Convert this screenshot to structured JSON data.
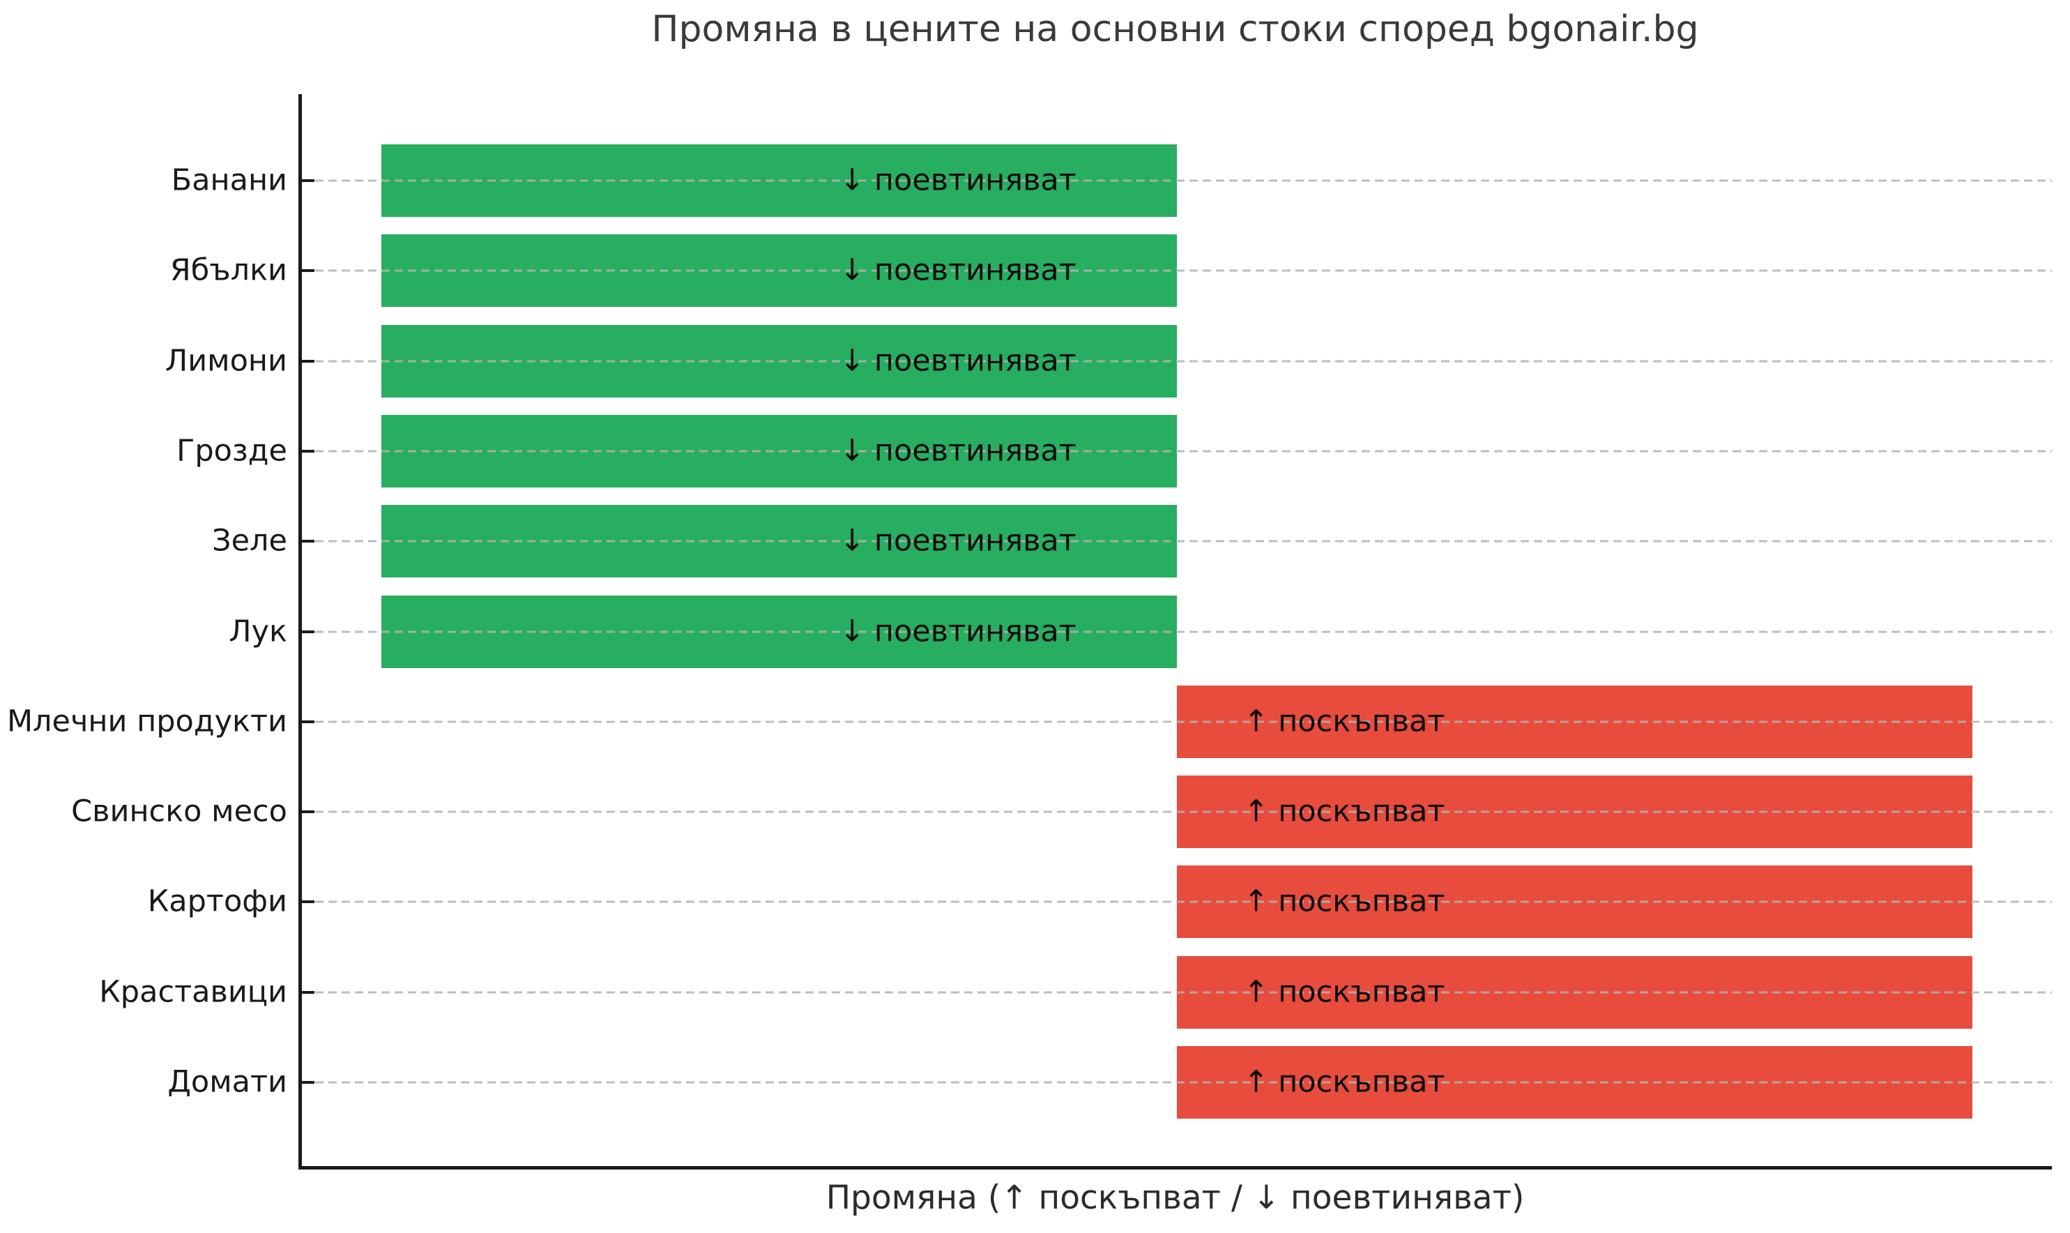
{
  "chart_data": {
    "type": "bar",
    "orientation": "horizontal",
    "title": "Промяна в цените на основни стоки според bgonair.bg",
    "xlabel": "Промяна (↑ поскъпват / ↓ поевтиняват)",
    "ylabel": "",
    "categories": [
      "Банани",
      "Ябълки",
      "Лимони",
      "Грозде",
      "Зеле",
      "Лук",
      "Млечни продукти",
      "Свинско месо",
      "Картофи",
      "Краставици",
      "Домати"
    ],
    "values": [
      -1,
      -1,
      -1,
      -1,
      -1,
      -1,
      1,
      1,
      1,
      1,
      1
    ],
    "bar_labels": [
      "↓ поевтиняват",
      "↓ поевтиняват",
      "↓ поевтиняват",
      "↓ поевтиняват",
      "↓ поевтиняват",
      "↓ поевтиняват",
      "↑ поскъпват",
      "↑ поскъпват",
      "↑ поскъпват",
      "↑ поскъпват",
      "↑ поскъпват"
    ],
    "bar_directions": [
      "down",
      "down",
      "down",
      "down",
      "down",
      "down",
      "up",
      "up",
      "up",
      "up",
      "up"
    ],
    "colors": {
      "down": "#27ae60",
      "up": "#e74c3c"
    },
    "xlim": [
      -1.1,
      1.1
    ],
    "grid": true,
    "grid_style": "dashed",
    "legend": null
  }
}
